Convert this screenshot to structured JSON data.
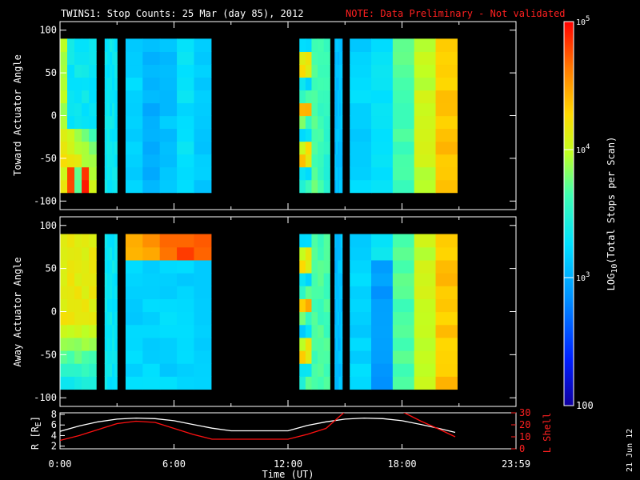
{
  "title": {
    "main": "TWINS1: Stop Counts: 25 Mar (day  85), 2012",
    "note": "NOTE: Data Preliminary - Not validated"
  },
  "colors": {
    "background": "#000000",
    "axes": "#ffffff",
    "note": "#ff2020",
    "l_shell_line": "#ff1010",
    "r_line": "#ffffff"
  },
  "chart_data": [
    {
      "type": "heatmap",
      "panel": "top",
      "ylabel": "Toward Actuator Angle",
      "ylim": [
        -110,
        110
      ],
      "yticks": [
        "100",
        "50",
        "0",
        "-50",
        "-100"
      ],
      "xlim_hours": [
        0,
        24
      ],
      "data_extent_deg": [
        -90,
        90
      ],
      "coverage_hours": [
        [
          0.0,
          1.9
        ],
        [
          2.35,
          3.0
        ],
        [
          3.45,
          7.95
        ],
        [
          12.6,
          14.2
        ],
        [
          14.45,
          14.85
        ],
        [
          15.25,
          20.9
        ]
      ]
    },
    {
      "type": "heatmap",
      "panel": "middle",
      "ylabel": "Away Actuator Angle",
      "ylim": [
        -110,
        110
      ],
      "yticks": [
        "100",
        "50",
        "0",
        "-50",
        "-100"
      ],
      "xlim_hours": [
        0,
        24
      ],
      "data_extent_deg": [
        -90,
        90
      ],
      "coverage_hours": [
        [
          0.0,
          1.9
        ],
        [
          2.35,
          3.0
        ],
        [
          3.45,
          7.95
        ],
        [
          12.6,
          14.2
        ],
        [
          14.45,
          14.85
        ],
        [
          15.25,
          20.9
        ]
      ]
    },
    {
      "type": "line",
      "panel": "bottom",
      "ylabel_left": "R [R",
      "ylabel_left_sub": "E",
      "ylabel_left_close": "]",
      "ylabel_right": "L Shell",
      "ylim_left": [
        1.5,
        8.3
      ],
      "ylim_right": [
        0,
        30
      ],
      "yticks_left": [
        "8",
        "6",
        "4",
        "2"
      ],
      "yticks_right": [
        "30",
        "20",
        "10",
        "0"
      ],
      "xlabel": "Time (UT)",
      "xticks": [
        "0:00",
        "6:00",
        "12:00",
        "18:00",
        "23:59"
      ],
      "series": [
        {
          "axis": "left",
          "x": [
            0,
            1,
            2,
            3,
            4,
            5,
            6,
            7,
            8,
            9,
            10,
            11,
            12,
            13,
            14,
            15,
            16,
            17,
            18,
            19,
            20,
            20.8
          ],
          "y": [
            4.8,
            5.8,
            6.6,
            7.1,
            7.3,
            7.2,
            6.8,
            6.1,
            5.4,
            4.9,
            4.9,
            4.9,
            4.9,
            5.9,
            6.6,
            7.1,
            7.3,
            7.2,
            6.8,
            6.1,
            5.3,
            4.6
          ]
        },
        {
          "axis": "right",
          "x": [
            0,
            1,
            2,
            3,
            4,
            5,
            6,
            7,
            8,
            9,
            10,
            11,
            12,
            13,
            14,
            15,
            16,
            17,
            18,
            19,
            20,
            20.8
          ],
          "y": [
            7,
            11,
            16,
            21,
            23,
            22,
            17,
            12,
            8,
            8,
            8,
            8,
            8,
            12,
            17,
            31,
            31,
            31,
            31,
            23,
            16,
            10
          ]
        }
      ]
    }
  ],
  "colorbar": {
    "label_pre": "LOG",
    "label_sub": "10",
    "label_post": "(Total Stops per Scan)",
    "scale": "log",
    "range": [
      100,
      100000
    ],
    "ticks": [
      {
        "base": "10",
        "exp": "5"
      },
      {
        "base": "10",
        "exp": "4"
      },
      {
        "base": "10",
        "exp": "3"
      }
    ],
    "bottom_tick": "100"
  },
  "date_stamp": "21 Jun 12"
}
